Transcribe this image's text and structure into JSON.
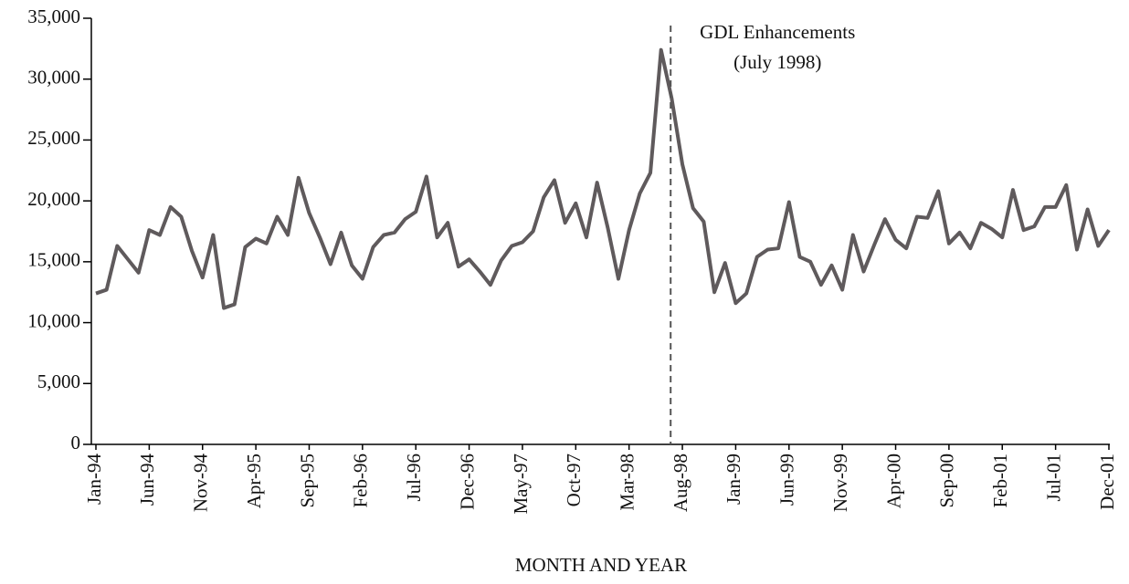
{
  "chart_data": {
    "type": "line",
    "x_label": "MONTH AND YEAR",
    "categories": [
      "Jan-94",
      null,
      null,
      null,
      null,
      "Jun-94",
      null,
      null,
      null,
      null,
      "Nov-94",
      null,
      null,
      null,
      null,
      "Apr-95",
      null,
      null,
      null,
      null,
      "Sep-95",
      null,
      null,
      null,
      null,
      "Feb-96",
      null,
      null,
      null,
      null,
      "Jul-96",
      null,
      null,
      null,
      null,
      "Dec-96",
      null,
      null,
      null,
      null,
      "May-97",
      null,
      null,
      null,
      null,
      "Oct-97",
      null,
      null,
      null,
      null,
      "Mar-98",
      null,
      null,
      null,
      null,
      "Aug-98",
      null,
      null,
      null,
      null,
      "Jan-99",
      null,
      null,
      null,
      null,
      "Jun-99",
      null,
      null,
      null,
      null,
      "Nov-99",
      null,
      null,
      null,
      null,
      "Apr-00",
      null,
      null,
      null,
      null,
      "Sep-00",
      null,
      null,
      null,
      null,
      "Feb-01",
      null,
      null,
      null,
      null,
      "Jul-01",
      null,
      null,
      null,
      null,
      "Dec-01"
    ],
    "series": [
      {
        "color": "#5f5a5c",
        "values": [
          12400,
          12700,
          16300,
          15200,
          14100,
          17600,
          17200,
          19500,
          18700,
          15900,
          13700,
          17200,
          11200,
          11500,
          16200,
          16900,
          16500,
          18700,
          17200,
          21900,
          19000,
          17000,
          14800,
          17400,
          14700,
          13600,
          16200,
          17200,
          17400,
          18500,
          19100,
          22000,
          17000,
          18200,
          14600,
          15200,
          14200,
          13100,
          15100,
          16300,
          16600,
          17500,
          20300,
          21700,
          18200,
          19800,
          17000,
          21500,
          17800,
          13600,
          17600,
          20600,
          22300,
          32400,
          28400,
          23000,
          19400,
          18300,
          12500,
          14900,
          11600,
          12400,
          15400,
          16000,
          16100,
          19900,
          15400,
          15000,
          13100,
          14700,
          12700,
          17200,
          14200,
          16400,
          18500,
          16800,
          16100,
          18700,
          18600,
          20800,
          16500,
          17400,
          16100,
          18200,
          17700,
          17000,
          20900,
          17600,
          17900,
          19500,
          19500,
          21300,
          16000,
          19300,
          16300,
          17600
        ]
      }
    ],
    "ylim": [
      0,
      35000
    ],
    "yticks": [
      0,
      {
        "value": 5000,
        "label": "5,000"
      },
      {
        "value": 10000,
        "label": "10,000"
      },
      {
        "value": 15000,
        "label": "15,000"
      },
      {
        "value": 20000,
        "label": "20,000"
      },
      {
        "value": 25000,
        "label": "25,000"
      },
      {
        "value": 30000,
        "label": "30,000"
      },
      {
        "value": 35000,
        "label": "35,000"
      }
    ],
    "annotation": {
      "lines": [
        "GDL Enhancements",
        "(July 1998)"
      ],
      "x": 53.9
    }
  }
}
